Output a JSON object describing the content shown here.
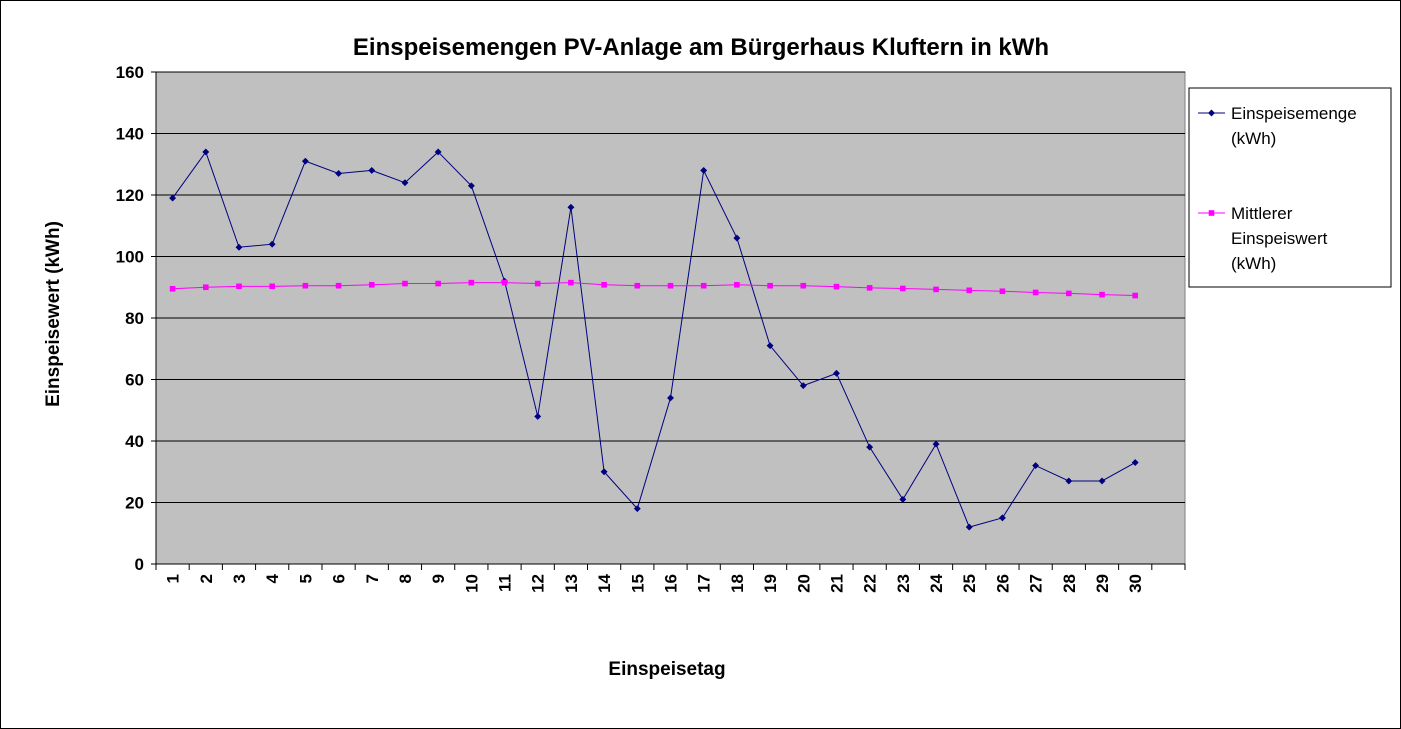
{
  "chart_data": {
    "type": "line",
    "title": "Einspeisemengen PV-Anlage am Bürgerhaus Kluftern in kWh",
    "xlabel": "Einspeisetag",
    "ylabel": "Einspeisewert (kWh)",
    "ylim": [
      0,
      160
    ],
    "yticks": [
      "0",
      "20",
      "40",
      "60",
      "80",
      "100",
      "120",
      "140",
      "160"
    ],
    "categories": [
      "1",
      "2",
      "3",
      "4",
      "5",
      "6",
      "7",
      "8",
      "9",
      "10",
      "11",
      "12",
      "13",
      "14",
      "15",
      "16",
      "17",
      "18",
      "19",
      "20",
      "21",
      "22",
      "23",
      "24",
      "25",
      "26",
      "27",
      "28",
      "29",
      "30"
    ],
    "grid": "horizontal",
    "plot_background": "#c0c0c0",
    "legend_position": "right",
    "series": [
      {
        "name": "Einspeisemenge (kWh)",
        "legend_lines": [
          "Einspeisemenge",
          "(kWh)"
        ],
        "color": "#000080",
        "marker": "diamond",
        "values": [
          119,
          134,
          103,
          104,
          131,
          127,
          128,
          124,
          134,
          123,
          92,
          48,
          116,
          30,
          18,
          54,
          128,
          106,
          71,
          58,
          62,
          38,
          21,
          39,
          12,
          15,
          32,
          27,
          27,
          33
        ]
      },
      {
        "name": "Mittlerer Einspeiswert (kWh)",
        "legend_lines": [
          "Mittlerer",
          "Einspeiswert",
          "(kWh)"
        ],
        "color": "#ff00ff",
        "marker": "square",
        "values": [
          89.5,
          90,
          90.3,
          90.3,
          90.5,
          90.5,
          90.8,
          91.2,
          91.2,
          91.5,
          91.5,
          91.2,
          91.5,
          90.8,
          90.5,
          90.5,
          90.5,
          90.8,
          90.5,
          90.5,
          90.2,
          89.8,
          89.6,
          89.3,
          89.0,
          88.7,
          88.3,
          88.0,
          87.6,
          87.3
        ]
      }
    ]
  }
}
